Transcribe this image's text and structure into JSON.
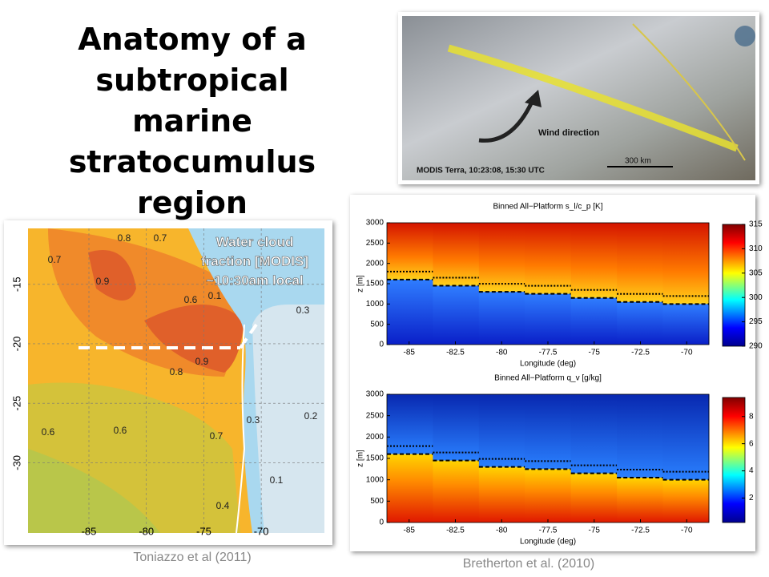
{
  "title": "Anatomy of a subtropical marine stratocumulus region",
  "satellite": {
    "wind_label": "Wind direction",
    "caption": "MODIS Terra, 10:23:08, 15:30 UTC",
    "scale": "300 km"
  },
  "map": {
    "annotation": [
      "Water cloud",
      "fraction [MODIS]",
      "~10:30am local"
    ],
    "xlim": [
      -90.3,
      -64.5
    ],
    "xticks": [
      -85,
      -80,
      -75,
      -70
    ],
    "ylim": [
      -35.9,
      -10.3
    ],
    "yticks": [
      -15,
      -20,
      -25,
      -30
    ],
    "contour_labels": [
      0.8,
      0.7,
      0.7,
      0.9,
      0.6,
      0.1,
      0.3,
      0.9,
      0.8,
      0.6,
      0.6,
      0.7,
      0.3,
      0.2,
      0.1,
      0.4
    ],
    "credit": "Toniazzo et al (2011)"
  },
  "profiles": {
    "credit": "Bretherton et al. (2010)",
    "panels": [
      {
        "title": "Binned All−Platform s_l/c_p [K]",
        "ylabel": "z [m]",
        "xlabel": "Longitude (deg)",
        "xlim": [
          -86.2,
          -68.8
        ],
        "xticks": [
          -85,
          -82.5,
          -80,
          -77.5,
          -75,
          -72.5,
          -70
        ],
        "ylim": [
          0,
          3000
        ],
        "yticks": [
          0,
          500,
          1000,
          1500,
          2000,
          2500,
          3000
        ],
        "clim": [
          290,
          315
        ],
        "cticks": [
          290,
          295,
          300,
          305,
          310,
          315
        ]
      },
      {
        "title": "Binned All−Platform q_v [g/kg]",
        "ylabel": "z [m]",
        "xlabel": "Longitude (deg)",
        "xlim": [
          -86.2,
          -68.8
        ],
        "xticks": [
          -85,
          -82.5,
          -80,
          -77.5,
          -75,
          -72.5,
          -70
        ],
        "ylim": [
          0,
          3000
        ],
        "yticks": [
          0,
          500,
          1000,
          1500,
          2000,
          2500,
          3000
        ],
        "clim": [
          0.2,
          9.4
        ],
        "cticks": [
          2,
          4,
          6,
          8
        ]
      }
    ]
  }
}
